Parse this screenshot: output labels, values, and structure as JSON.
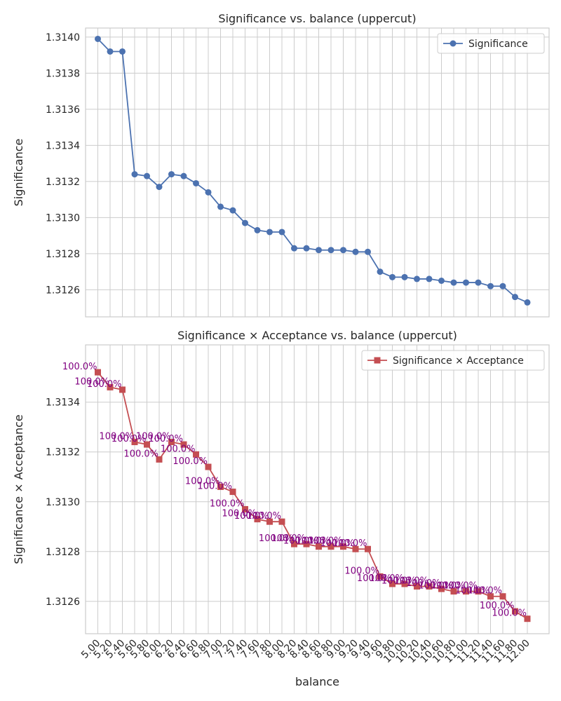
{
  "chart_data": [
    {
      "type": "line",
      "title": "Significance vs. balance (uppercut)",
      "xlabel": "",
      "ylabel": "Significance",
      "color": "#4c72b0",
      "marker": "circle",
      "legend_label": "Significance",
      "legend_placement": "top-right",
      "grid": true,
      "ylim": [
        1.31245,
        1.31405
      ],
      "yticks": [
        "1.3126",
        "1.3128",
        "1.3130",
        "1.3132",
        "1.3134",
        "1.3136",
        "1.3138",
        "1.3140"
      ],
      "x": [
        "5.00",
        "5.20",
        "5.40",
        "5.60",
        "5.80",
        "6.00",
        "6.20",
        "6.40",
        "6.60",
        "6.80",
        "7.00",
        "7.20",
        "7.40",
        "7.60",
        "7.80",
        "8.00",
        "8.20",
        "8.40",
        "8.60",
        "8.80",
        "9.00",
        "9.20",
        "9.40",
        "9.60",
        "9.80",
        "10.00",
        "10.20",
        "10.40",
        "10.60",
        "10.80",
        "11.00",
        "11.20",
        "11.40",
        "11.60",
        "11.80",
        "12.00"
      ],
      "values": [
        1.31399,
        1.31392,
        1.31392,
        1.31324,
        1.31323,
        1.31317,
        1.31324,
        1.31323,
        1.31319,
        1.31314,
        1.31306,
        1.31304,
        1.31297,
        1.31293,
        1.31292,
        1.31292,
        1.31283,
        1.31283,
        1.31282,
        1.31282,
        1.31282,
        1.31281,
        1.31281,
        1.3127,
        1.31267,
        1.31267,
        1.31266,
        1.31266,
        1.31265,
        1.31264,
        1.31264,
        1.31264,
        1.31262,
        1.31262,
        1.31256,
        1.31253
      ]
    },
    {
      "type": "line",
      "title": "Significance × Acceptance vs. balance (uppercut)",
      "xlabel": "balance",
      "ylabel": "Significance × Acceptance",
      "color": "#c44e52",
      "marker": "square",
      "annotation_color": "#800080",
      "legend_label": "Significance × Acceptance",
      "legend_placement": "top-right",
      "grid": true,
      "ylim": [
        1.31247,
        1.31363
      ],
      "yticks": [
        "1.3126",
        "1.3128",
        "1.3130",
        "1.3132",
        "1.3134"
      ],
      "x": [
        "5.00",
        "5.20",
        "5.40",
        "5.60",
        "5.80",
        "6.00",
        "6.20",
        "6.40",
        "6.60",
        "6.80",
        "7.00",
        "7.20",
        "7.40",
        "7.60",
        "7.80",
        "8.00",
        "8.20",
        "8.40",
        "8.60",
        "8.80",
        "9.00",
        "9.20",
        "9.40",
        "9.60",
        "9.80",
        "10.00",
        "10.20",
        "10.40",
        "10.60",
        "10.80",
        "11.00",
        "11.20",
        "11.40",
        "11.60",
        "11.80",
        "12.00"
      ],
      "values": [
        1.31352,
        1.31346,
        1.31345,
        1.31324,
        1.31323,
        1.31317,
        1.31324,
        1.31323,
        1.31319,
        1.31314,
        1.31306,
        1.31304,
        1.31297,
        1.31293,
        1.31292,
        1.31292,
        1.31283,
        1.31283,
        1.31282,
        1.31282,
        1.31282,
        1.31281,
        1.31281,
        1.3127,
        1.31267,
        1.31267,
        1.31266,
        1.31266,
        1.31265,
        1.31264,
        1.31264,
        1.31264,
        1.31262,
        1.31262,
        1.31256,
        1.31253
      ],
      "annotations": [
        "100.0%",
        "100.0%",
        "100.0%",
        "100.0%",
        "100.0%",
        "100.0%",
        "100.0%",
        "100.0%",
        "100.0%",
        "100.0%",
        "100.0%",
        "100.0%",
        "100.0%",
        "100.0%",
        "100.0%",
        "100.0%",
        "100.0%",
        "100.0%",
        "100.0%",
        "100.0%",
        "100.0%",
        "100.0%",
        "100.0%",
        "100.0%",
        "100.0%",
        "100.0%",
        "100.0%",
        "100.0%",
        "100.0%",
        "100.0%",
        "100.0%",
        "100.0%",
        "100.0%",
        "100.0%",
        "100.0%",
        "100.0%"
      ]
    }
  ]
}
